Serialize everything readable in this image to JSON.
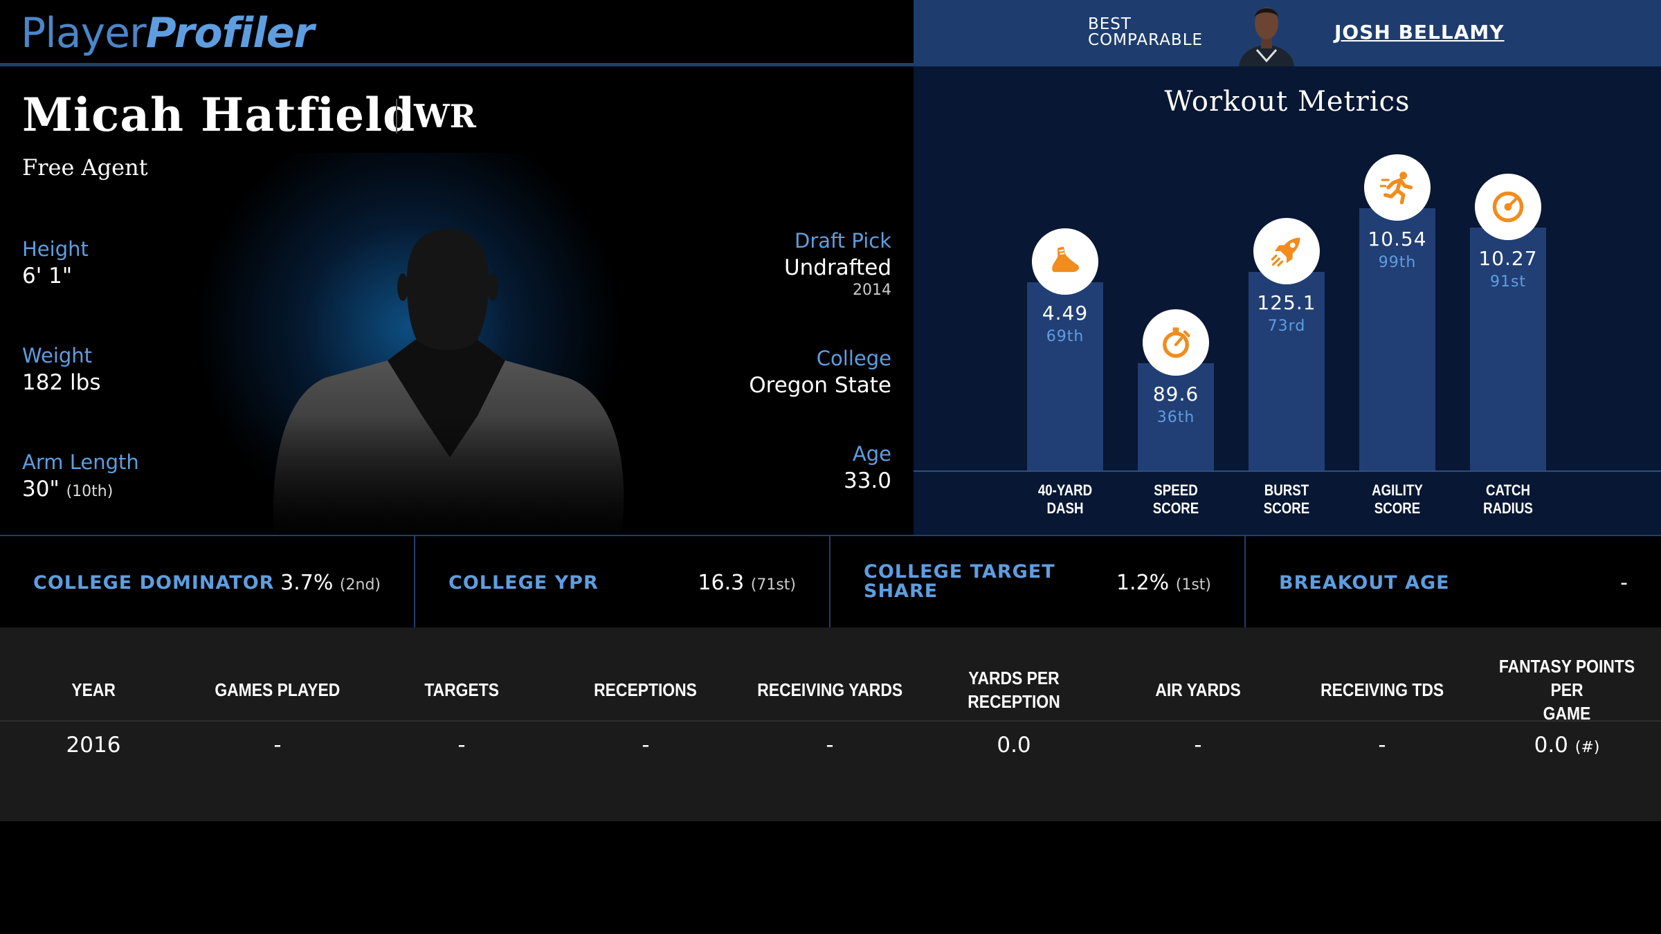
{
  "brand": {
    "part1": "Player",
    "part2": "Profiler"
  },
  "comparable": {
    "label_line1": "BEST",
    "label_line2": "COMPARABLE",
    "name": "JOSH BELLAMY"
  },
  "player": {
    "name": "Micah Hatfield",
    "position": "WR",
    "team": "Free Agent",
    "height_label": "Height",
    "height": "6' 1\"",
    "weight_label": "Weight",
    "weight": "182 lbs",
    "arm_label": "Arm Length",
    "arm": "30\"",
    "arm_rank": "(10th)",
    "draft_label": "Draft Pick",
    "draft": "Undrafted",
    "draft_year": "2014",
    "college_label": "College",
    "college": "Oregon State",
    "age_label": "Age",
    "age": "33.0"
  },
  "metrics": {
    "title": "Workout Metrics",
    "items": [
      {
        "label1": "40-YARD",
        "label2": "DASH",
        "value": "4.49",
        "percentile": "69th",
        "pct": 69,
        "icon": "shoe-icon"
      },
      {
        "label1": "SPEED",
        "label2": "SCORE",
        "value": "89.6",
        "percentile": "36th",
        "pct": 36,
        "icon": "stopwatch-icon"
      },
      {
        "label1": "BURST",
        "label2": "SCORE",
        "value": "125.1",
        "percentile": "73rd",
        "pct": 73,
        "icon": "rocket-icon"
      },
      {
        "label1": "AGILITY",
        "label2": "SCORE",
        "value": "10.54",
        "percentile": "99th",
        "pct": 99,
        "icon": "runner-icon"
      },
      {
        "label1": "CATCH",
        "label2": "RADIUS",
        "value": "10.27",
        "percentile": "91st",
        "pct": 91,
        "icon": "target-icon"
      }
    ],
    "accent_color": "#f28c1c",
    "bar_color": "#213f75"
  },
  "college_stats": [
    {
      "label": "COLLEGE DOMINATOR",
      "value": "3.7%",
      "rank": "(2nd)"
    },
    {
      "label": "COLLEGE YPR",
      "value": "16.3",
      "rank": "(71st)"
    },
    {
      "label1": "COLLEGE TARGET",
      "label2": "SHARE",
      "value": "1.2%",
      "rank": "(1st)"
    },
    {
      "label": "BREAKOUT AGE",
      "value": "-",
      "rank": ""
    }
  ],
  "table": {
    "headers": [
      "YEAR",
      "GAMES PLAYED",
      "TARGETS",
      "RECEPTIONS",
      "RECEIVING YARDS",
      "YARDS PER RECEPTION",
      "AIR YARDS",
      "RECEIVING TDS",
      "FANTASY POINTS PER",
      "GAME"
    ],
    "row": [
      "2016",
      "-",
      "-",
      "-",
      "-",
      "0.0",
      "-",
      "-",
      "0.0"
    ],
    "hash": "(#)"
  }
}
